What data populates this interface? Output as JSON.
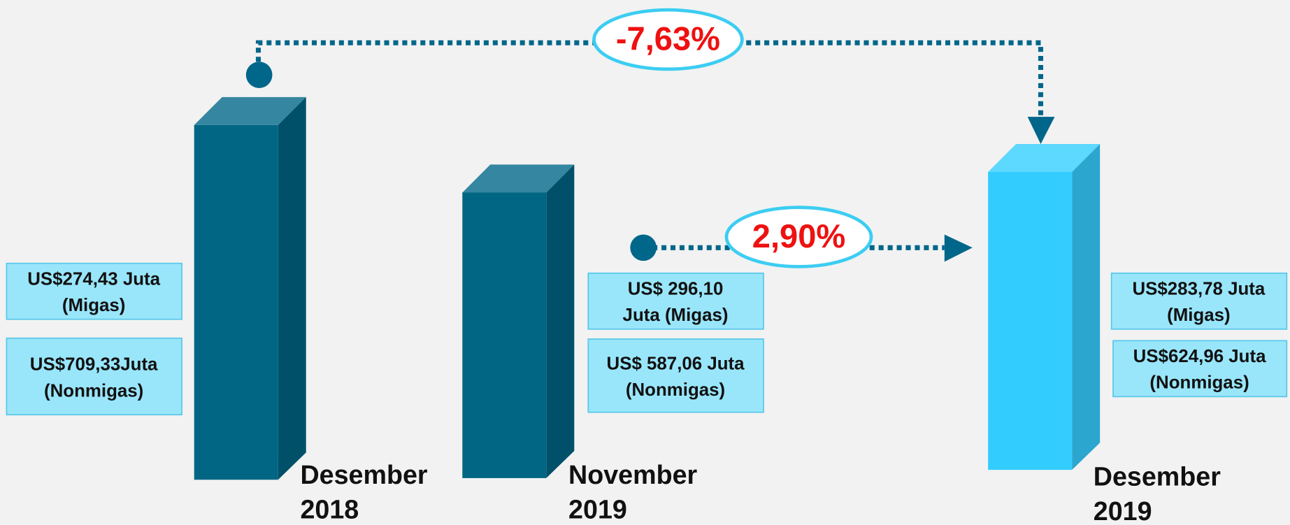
{
  "periods": [
    {
      "label": [
        "Desember",
        "2018"
      ],
      "migas": [
        "US$274,43  Juta",
        "(Migas)"
      ],
      "nonmigas": [
        "US$709,33Juta",
        "(Nonmigas)"
      ]
    },
    {
      "label": [
        "November",
        "2019"
      ],
      "migas": [
        "US$ 296,10",
        "Juta (Migas)"
      ],
      "nonmigas": [
        "US$ 587,06 Juta",
        "(Nonmigas)"
      ]
    },
    {
      "label": [
        "Desember",
        "2019"
      ],
      "migas": [
        "US$283,78  Juta",
        "(Migas)"
      ],
      "nonmigas": [
        "US$624,96 Juta",
        "(Nonmigas)"
      ]
    }
  ],
  "changes": [
    {
      "label": "-7,63%"
    },
    {
      "label": "2,90%"
    }
  ]
}
